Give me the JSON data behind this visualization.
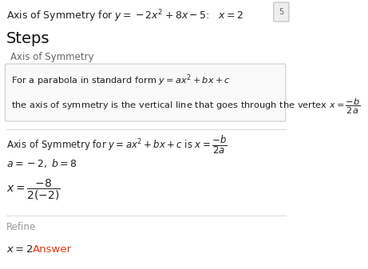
{
  "bg_color": "#ffffff",
  "header_text": "Axis of Symmetry for $y = -2x^2 + 8x - 5$:   $x = 2$",
  "steps_title": "Steps",
  "section_label": "Axis of Symmetry",
  "box_line1": "For a parabola in standard form $y = ax^2 + bx + c$",
  "box_line2": "the axis of symmetry is the vertical line that goes through the vertex $x = \\dfrac{-b}{2a}$",
  "step_line1": "Axis of Symmetry for $y = ax^2 + bx + c$ is $x = \\dfrac{-b}{2a}$",
  "step_line2": "$a = -2,\\; b = 8$",
  "step_line3": "$x = \\dfrac{-8}{2(-2)}$",
  "refine_label": "Refine",
  "answer_line_plain": "$x = 2$",
  "answer_word": "Answer",
  "box_bg": "#f9f9f9",
  "box_border": "#cccccc",
  "section_color": "#666666",
  "text_color": "#222222",
  "answer_color": "#e8340a",
  "header_color": "#222222",
  "refine_color": "#999999",
  "steps_color": "#111111",
  "badge_color": "#eeeeee",
  "badge_text": "5",
  "badge_text_color": "#666666",
  "sep_color": "#dddddd"
}
